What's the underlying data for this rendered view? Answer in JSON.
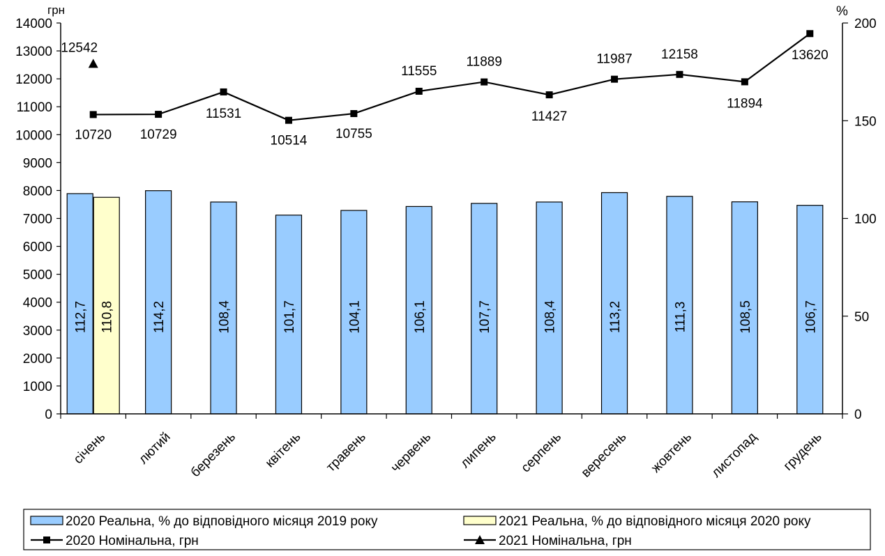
{
  "chart_data": {
    "type": "bar",
    "categories": [
      "січень",
      "лютий",
      "березень",
      "квітень",
      "травень",
      "червень",
      "липень",
      "серпень",
      "вересень",
      "жовтень",
      "листопад",
      "грудень"
    ],
    "left_axis": {
      "unit": "грн",
      "ylim": [
        0,
        14000
      ],
      "ticks": [
        0,
        1000,
        2000,
        3000,
        4000,
        5000,
        6000,
        7000,
        8000,
        9000,
        10000,
        11000,
        12000,
        13000,
        14000
      ]
    },
    "right_axis": {
      "unit": "%",
      "ylim": [
        0,
        200
      ],
      "ticks": [
        0,
        50,
        100,
        150,
        200
      ]
    },
    "grid": false,
    "legend_position": "bottom",
    "series": [
      {
        "name": "2020 Реальна, % до відповідного місяця 2019 року",
        "kind": "bar",
        "axis": "right",
        "color": "#99CCFF",
        "values": [
          112.7,
          114.2,
          108.4,
          101.7,
          104.1,
          106.1,
          107.7,
          108.4,
          113.2,
          111.3,
          108.5,
          106.7
        ],
        "labels": [
          "112,7",
          "114,2",
          "108,4",
          "101,7",
          "104,1",
          "106,1",
          "107,7",
          "108,4",
          "113,2",
          "111,3",
          "108,5",
          "106,7"
        ]
      },
      {
        "name": "2021 Реальна, % до відповідного місяця 2020 року",
        "kind": "bar",
        "axis": "right",
        "color": "#FFFFCC",
        "values": [
          110.8,
          null,
          null,
          null,
          null,
          null,
          null,
          null,
          null,
          null,
          null,
          null
        ],
        "labels": [
          "110,8"
        ]
      },
      {
        "name": "2020 Номінальна, грн",
        "kind": "line",
        "axis": "left",
        "marker": "square",
        "color": "#000000",
        "values": [
          10720,
          10729,
          11531,
          10514,
          10755,
          11555,
          11889,
          11427,
          11987,
          12158,
          11894,
          13620
        ],
        "labels": [
          "10720",
          "10729",
          "11531",
          "10514",
          "10755",
          "11555",
          "11889",
          "11427",
          "11987",
          "12158",
          "11894",
          "13620"
        ]
      },
      {
        "name": "2021 Номінальна, грн",
        "kind": "line",
        "axis": "left",
        "marker": "triangle",
        "color": "#000000",
        "values": [
          12542,
          null,
          null,
          null,
          null,
          null,
          null,
          null,
          null,
          null,
          null,
          null
        ],
        "labels": [
          "12542"
        ]
      }
    ]
  }
}
